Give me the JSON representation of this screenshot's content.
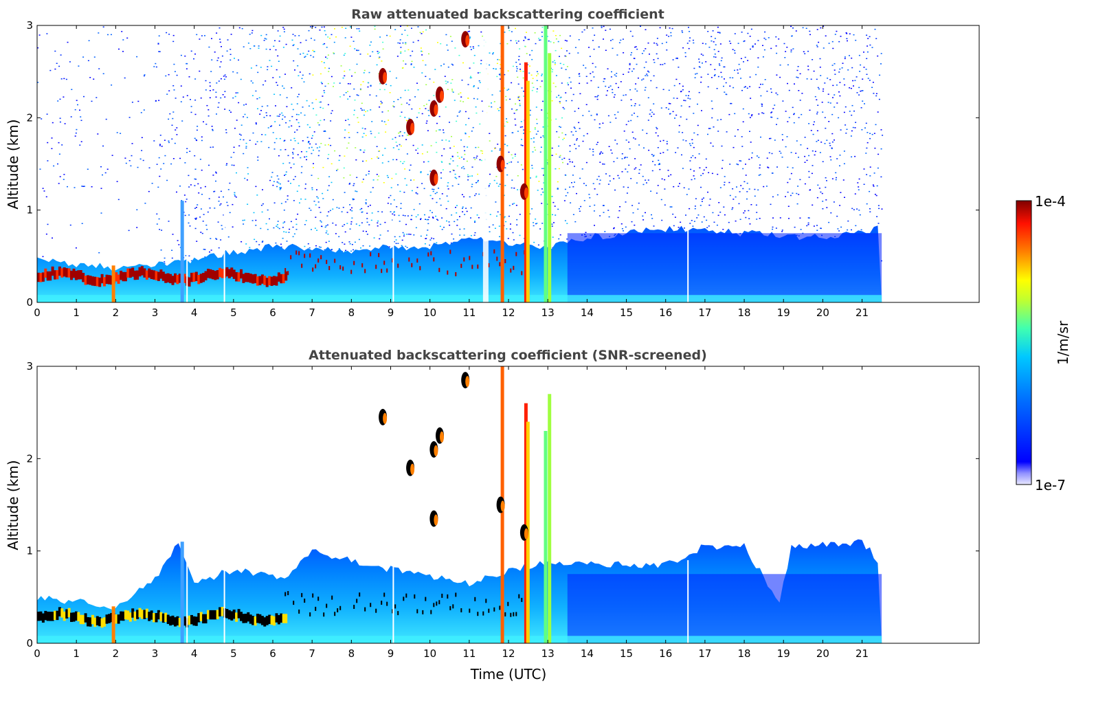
{
  "chart_data": [
    {
      "type": "heatmap",
      "title": "Raw attenuated backscattering coefficient",
      "xlabel": "",
      "ylabel": "Altitude (km)",
      "xlim": [
        0,
        24
      ],
      "ylim": [
        0,
        3
      ],
      "x_ticks": [
        "0",
        "1",
        "2",
        "3",
        "4",
        "5",
        "6",
        "7",
        "8",
        "9",
        "10",
        "11",
        "12",
        "13",
        "14",
        "15",
        "16",
        "17",
        "18",
        "19",
        "20",
        "21"
      ],
      "y_ticks": [
        "0",
        "1",
        "2",
        "3"
      ],
      "data_x_end": 21.5,
      "boundary_layer_top_km": [
        {
          "x": 0,
          "y": 0.45
        },
        {
          "x": 1,
          "y": 0.42
        },
        {
          "x": 2,
          "y": 0.38
        },
        {
          "x": 3,
          "y": 0.4
        },
        {
          "x": 4,
          "y": 0.45
        },
        {
          "x": 5,
          "y": 0.55
        },
        {
          "x": 6,
          "y": 0.6
        },
        {
          "x": 7,
          "y": 0.6
        },
        {
          "x": 8,
          "y": 0.55
        },
        {
          "x": 9,
          "y": 0.6
        },
        {
          "x": 10,
          "y": 0.6
        },
        {
          "x": 11,
          "y": 0.7
        },
        {
          "x": 12,
          "y": 0.65
        },
        {
          "x": 13,
          "y": 0.6
        },
        {
          "x": 14,
          "y": 0.7
        },
        {
          "x": 16,
          "y": 0.8
        },
        {
          "x": 18,
          "y": 0.75
        },
        {
          "x": 20,
          "y": 0.7
        },
        {
          "x": 21.4,
          "y": 0.8
        }
      ],
      "cloud_layers": [
        {
          "x": 8.8,
          "y": 2.45
        },
        {
          "x": 9.5,
          "y": 1.9
        },
        {
          "x": 10.1,
          "y": 2.1
        },
        {
          "x": 10.25,
          "y": 2.25
        },
        {
          "x": 10.1,
          "y": 1.35
        },
        {
          "x": 10.9,
          "y": 2.85
        },
        {
          "x": 11.8,
          "y": 1.5
        },
        {
          "x": 12.4,
          "y": 1.2
        }
      ]
    },
    {
      "type": "heatmap",
      "title": "Attenuated backscattering coefficient (SNR-screened)",
      "xlabel": "Time (UTC)",
      "ylabel": "Altitude (km)",
      "xlim": [
        0,
        24
      ],
      "ylim": [
        0,
        3
      ],
      "x_ticks": [
        "0",
        "1",
        "2",
        "3",
        "4",
        "5",
        "6",
        "7",
        "8",
        "9",
        "10",
        "11",
        "12",
        "13",
        "14",
        "15",
        "16",
        "17",
        "18",
        "19",
        "20",
        "21"
      ],
      "y_ticks": [
        "0",
        "1",
        "2",
        "3"
      ],
      "data_x_end": 21.5,
      "signal_top_km": [
        {
          "x": 0,
          "y": 0.5
        },
        {
          "x": 2,
          "y": 0.4
        },
        {
          "x": 3,
          "y": 0.7
        },
        {
          "x": 3.6,
          "y": 1.1
        },
        {
          "x": 4,
          "y": 0.65
        },
        {
          "x": 5,
          "y": 0.8
        },
        {
          "x": 6.3,
          "y": 0.7
        },
        {
          "x": 7,
          "y": 1.0
        },
        {
          "x": 8,
          "y": 0.9
        },
        {
          "x": 9,
          "y": 0.8
        },
        {
          "x": 11,
          "y": 0.65
        },
        {
          "x": 13,
          "y": 0.9
        },
        {
          "x": 14,
          "y": 0.85
        },
        {
          "x": 16,
          "y": 0.85
        },
        {
          "x": 17,
          "y": 1.05
        },
        {
          "x": 18,
          "y": 1.05
        },
        {
          "x": 18.9,
          "y": 0.45
        },
        {
          "x": 19.2,
          "y": 1.05
        },
        {
          "x": 21,
          "y": 1.1
        },
        {
          "x": 21.4,
          "y": 0.9
        }
      ]
    }
  ],
  "colorbar": {
    "label": "1/m/sr",
    "max_label": "1e-4",
    "min_label": "1e-7",
    "range": [
      1e-07,
      0.0001
    ],
    "scale": "log",
    "colormap": "jet"
  }
}
